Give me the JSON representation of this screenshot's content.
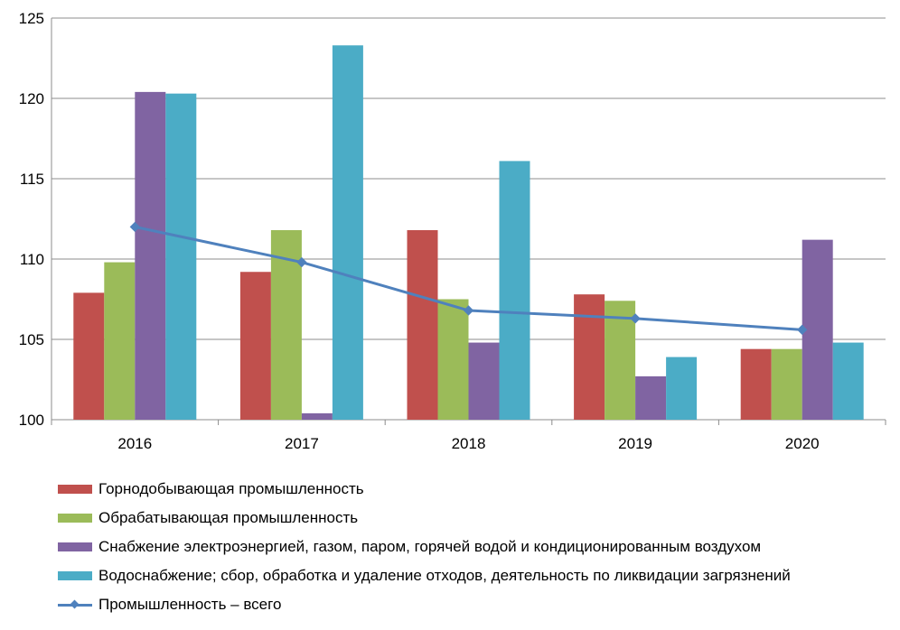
{
  "chart_data": {
    "type": "bar",
    "categories": [
      "2016",
      "2017",
      "2018",
      "2019",
      "2020"
    ],
    "ylim": [
      100,
      125
    ],
    "yticks": [
      100,
      105,
      110,
      115,
      120,
      125
    ],
    "grid": true,
    "legend_position": "bottom",
    "series": [
      {
        "name": "Горнодобывающая промышленность",
        "type": "bar",
        "color": "#C0504D",
        "values": [
          107.9,
          109.2,
          111.8,
          107.8,
          104.4
        ]
      },
      {
        "name": "Обрабатывающая промышленность",
        "type": "bar",
        "color": "#9BBB59",
        "values": [
          109.8,
          111.8,
          107.5,
          107.4,
          104.4
        ]
      },
      {
        "name": "Снабжение электроэнергией, газом, паром, горячей водой и кондиционированным воздухом",
        "type": "bar",
        "color": "#8064A2",
        "values": [
          120.4,
          100.4,
          104.8,
          102.7,
          111.2
        ]
      },
      {
        "name": "Водоснабжение; сбор, обработка и удаление отходов, деятельность по ликвидации загрязнений",
        "type": "bar",
        "color": "#4BACC6",
        "values": [
          120.3,
          123.3,
          116.1,
          103.9,
          104.8
        ]
      },
      {
        "name": "Промышленность – всего",
        "type": "line",
        "color": "#4F81BD",
        "values": [
          112.0,
          109.8,
          106.8,
          106.3,
          105.6
        ]
      }
    ]
  }
}
